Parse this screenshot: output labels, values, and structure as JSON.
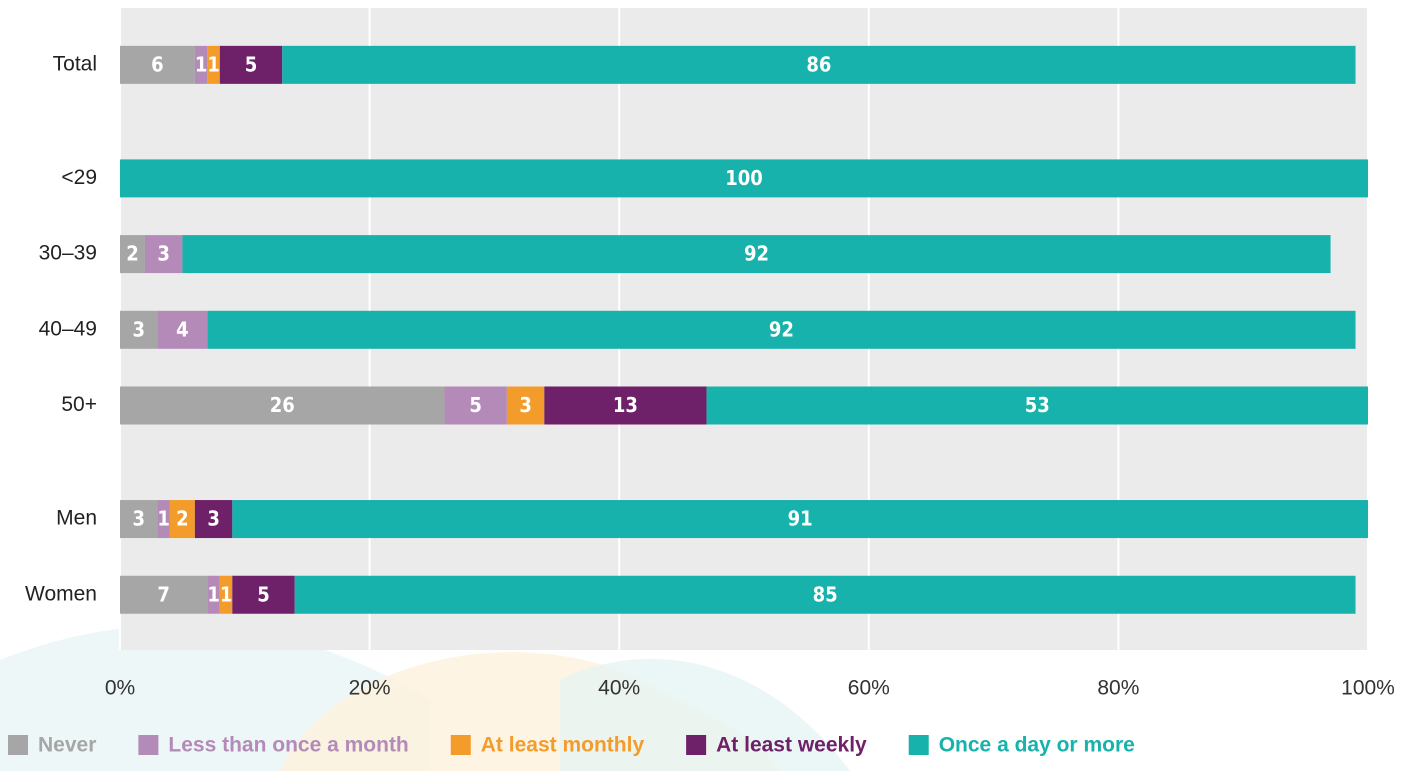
{
  "chart_data": {
    "type": "stacked-bar-horizontal",
    "categories": [
      "Total",
      null,
      "<29",
      "30–39",
      "40–49",
      "50+",
      null,
      "Men",
      "Women"
    ],
    "series": [
      {
        "name": "Never",
        "color": "#a6a6a6",
        "values": [
          6,
          null,
          null,
          2,
          3,
          26,
          null,
          3,
          7
        ]
      },
      {
        "name": "Less than once a month",
        "color": "#b48bb8",
        "values": [
          1,
          null,
          null,
          3,
          4,
          5,
          null,
          1,
          1
        ]
      },
      {
        "name": "At least monthly",
        "color": "#f39c2c",
        "values": [
          1,
          null,
          null,
          null,
          null,
          3,
          null,
          2,
          1
        ]
      },
      {
        "name": "At least weekly",
        "color": "#6e2068",
        "values": [
          5,
          null,
          null,
          null,
          null,
          13,
          null,
          3,
          5
        ]
      },
      {
        "name": "Once a day or more",
        "color": "#17b2ab",
        "values": [
          86,
          null,
          100,
          92,
          92,
          53,
          null,
          91,
          85
        ]
      }
    ],
    "xlim": [
      0,
      100
    ],
    "xticks": [
      {
        "value": 0,
        "label": "0%"
      },
      {
        "value": 20,
        "label": "20%"
      },
      {
        "value": 40,
        "label": "40%"
      },
      {
        "value": 60,
        "label": "60%"
      },
      {
        "value": 80,
        "label": "80%"
      },
      {
        "value": 100,
        "label": "100%"
      }
    ],
    "grid": true
  }
}
